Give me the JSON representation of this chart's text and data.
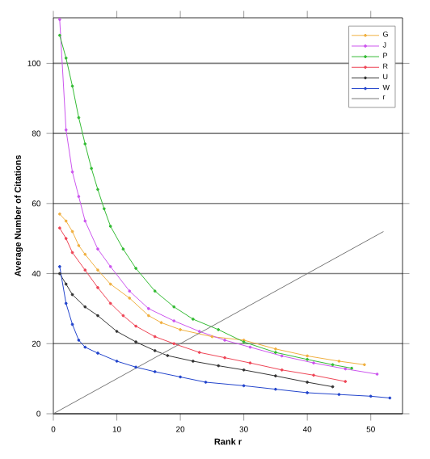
{
  "chart_data": {
    "type": "line",
    "xlabel": "Rank r",
    "ylabel": "Average Number of Citations",
    "xlim": [
      0,
      55
    ],
    "ylim": [
      0,
      113
    ],
    "xticks": [
      0,
      10,
      20,
      30,
      40,
      50
    ],
    "yticks": [
      0,
      20,
      40,
      60,
      80,
      100
    ],
    "grid": "y",
    "legend": "top right",
    "marker": "circle",
    "series": [
      {
        "name": "G",
        "color": "#f0b040",
        "x": [
          1,
          2,
          3,
          4,
          5,
          7,
          9,
          12,
          15,
          17,
          20,
          25,
          30,
          35,
          40,
          45,
          49
        ],
        "values": [
          57,
          55,
          52,
          48,
          45.5,
          41,
          37,
          33,
          28,
          26,
          24,
          22,
          21,
          18.5,
          16.5,
          15,
          14
        ]
      },
      {
        "name": "J",
        "color": "#cc55ee",
        "x": [
          1,
          2,
          3,
          4,
          5,
          7,
          9,
          12,
          15,
          19,
          23,
          27,
          31,
          36,
          41,
          46,
          51
        ],
        "values": [
          112.5,
          81,
          69,
          62,
          55,
          47,
          42,
          35,
          30,
          26.5,
          23.5,
          21,
          19,
          16.5,
          14.5,
          12.8,
          11.3
        ]
      },
      {
        "name": "P",
        "color": "#33bb33",
        "x": [
          1,
          2,
          3,
          4,
          5,
          6,
          7,
          8,
          9,
          11,
          13,
          16,
          19,
          22,
          26,
          30,
          35,
          40,
          44,
          47
        ],
        "values": [
          108,
          101.5,
          93.5,
          84.5,
          77,
          70,
          64,
          58.5,
          53.5,
          47,
          41.5,
          35,
          30.5,
          27,
          24,
          20.5,
          17.5,
          15.5,
          14,
          13
        ]
      },
      {
        "name": "R",
        "color": "#ee4455",
        "x": [
          1,
          2,
          3,
          5,
          7,
          9,
          11,
          13,
          16,
          19,
          23,
          27,
          31,
          36,
          41,
          46
        ],
        "values": [
          53,
          50,
          46,
          41,
          36,
          31.5,
          28,
          25,
          22,
          20,
          17.5,
          16,
          14.5,
          12.5,
          11,
          9.2
        ]
      },
      {
        "name": "U",
        "color": "#333333",
        "x": [
          1,
          2,
          3,
          5,
          7,
          10,
          13,
          16,
          18,
          22,
          26,
          30,
          35,
          40,
          44
        ],
        "values": [
          40,
          37,
          34,
          30.5,
          28,
          23.5,
          20.5,
          18,
          16.6,
          15,
          13.7,
          12.5,
          10.8,
          9,
          7.7
        ]
      },
      {
        "name": "W",
        "color": "#2244cc",
        "x": [
          1,
          2,
          3,
          4,
          5,
          7,
          10,
          13,
          16,
          20,
          24,
          30,
          35,
          40,
          45,
          50,
          53
        ],
        "values": [
          42,
          31.5,
          25.5,
          21,
          19,
          17.3,
          15,
          13.3,
          12,
          10.5,
          9,
          8,
          7,
          6,
          5.5,
          5,
          4.5
        ]
      },
      {
        "name": "r",
        "color": "#777777",
        "marker": "none",
        "x": [
          0,
          52
        ],
        "values": [
          0,
          52
        ]
      }
    ]
  }
}
